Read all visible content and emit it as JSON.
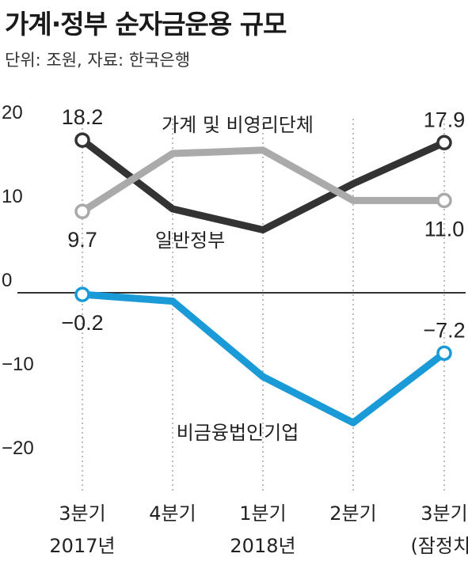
{
  "chart_data": {
    "type": "line",
    "title": "가계·정부 순자금운용 규모",
    "subtitle": "단위: 조원, 자료: 한국은행",
    "categories": [
      [
        "3분기",
        "2017년"
      ],
      [
        "4분기",
        ""
      ],
      [
        "1분기",
        "2018년"
      ],
      [
        "2분기",
        ""
      ],
      [
        "3분기",
        "(잠정치)"
      ]
    ],
    "yticks": [
      "20",
      "10",
      "0",
      "−10",
      "−20"
    ],
    "ylim": [
      -23,
      22
    ],
    "grid": false,
    "series": [
      {
        "name": "가계 및 비영리단체",
        "color": "#333333",
        "values": [
          18.2,
          10,
          7.5,
          13,
          17.9
        ],
        "labels": [
          {
            "index": 0,
            "text": "18.2",
            "pos": "above"
          },
          {
            "index": 4,
            "text": "17.9",
            "pos": "above"
          }
        ]
      },
      {
        "name": "일반정부",
        "color": "#aaaaaa",
        "values": [
          9.7,
          16.6,
          17.0,
          11.0,
          11.0
        ],
        "labels": [
          {
            "index": 0,
            "text": "9.7",
            "pos": "below"
          },
          {
            "index": 4,
            "text": "11.0",
            "pos": "below"
          }
        ]
      },
      {
        "name": "비금융법인기업",
        "color": "#1a9ad6",
        "values": [
          -0.2,
          -1,
          -10,
          -15.5,
          -7.2
        ],
        "labels": [
          {
            "index": 0,
            "text": "−0.2",
            "pos": "below"
          },
          {
            "index": 4,
            "text": "−7.2",
            "pos": "above"
          }
        ]
      }
    ]
  }
}
